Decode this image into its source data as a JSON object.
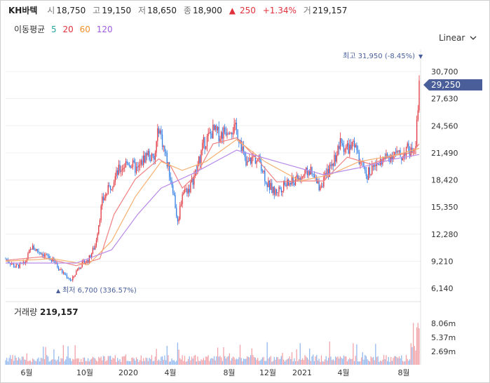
{
  "header": {
    "name": "KH바텍",
    "open_label": "시",
    "open": "18,750",
    "high_label": "고",
    "high": "19,150",
    "low_label": "저",
    "low": "18,650",
    "close_label": "종",
    "close": "18,900",
    "change": "250",
    "change_pct": "+1.34%",
    "volume_label": "거",
    "volume": "219,157"
  },
  "moving_average": {
    "label": "이동평균",
    "periods": [
      {
        "value": "5",
        "color": "#26a69a"
      },
      {
        "value": "20",
        "color": "#e0323c"
      },
      {
        "value": "60",
        "color": "#f5902b"
      },
      {
        "value": "120",
        "color": "#a05ae0"
      }
    ]
  },
  "scale_selector": {
    "label": "Linear"
  },
  "volume_panel": {
    "label": "거래량",
    "value": "219,157"
  },
  "colors": {
    "up": "#e0323c",
    "down": "#2c7be5",
    "last_price_bg": "#4a5f9a"
  },
  "chart_data": {
    "type": "candlestick-with-volume",
    "price_axis": {
      "ticks": [
        "30,700",
        "27,630",
        "24,560",
        "21,490",
        "18,420",
        "15,350",
        "12,280",
        "9,210",
        "6,140"
      ],
      "tick_values": [
        30700,
        27630,
        24560,
        21490,
        18420,
        15350,
        12280,
        9210,
        6140
      ]
    },
    "x_axis": {
      "ticks": [
        "6월",
        "10월",
        "2020",
        "4월",
        "8월",
        "12월",
        "2021",
        "4월",
        "8월"
      ]
    },
    "volume_axis": {
      "ticks": [
        "8.06m",
        "5.37m",
        "2.69m"
      ]
    },
    "last_price": "29,250",
    "high_marker": {
      "label": "최고",
      "value": "31,950",
      "pct": "(-8.45%)"
    },
    "low_marker": {
      "label": "최저",
      "value": "6,700",
      "pct": "(336.57%)"
    },
    "price_path": [
      [
        0,
        9500
      ],
      [
        8,
        8600
      ],
      [
        16,
        8900
      ],
      [
        22,
        10800
      ],
      [
        30,
        10200
      ],
      [
        40,
        9300
      ],
      [
        48,
        8000
      ],
      [
        56,
        7000
      ],
      [
        62,
        8600
      ],
      [
        70,
        9300
      ],
      [
        76,
        11000
      ],
      [
        82,
        16000
      ],
      [
        88,
        17500
      ],
      [
        96,
        19500
      ],
      [
        104,
        20500
      ],
      [
        112,
        19500
      ],
      [
        120,
        21500
      ],
      [
        126,
        20500
      ],
      [
        130,
        24500
      ],
      [
        136,
        21000
      ],
      [
        142,
        17500
      ],
      [
        146,
        13500
      ],
      [
        150,
        17000
      ],
      [
        156,
        17500
      ],
      [
        162,
        19500
      ],
      [
        168,
        22500
      ],
      [
        176,
        24000
      ],
      [
        182,
        23500
      ],
      [
        190,
        24500
      ],
      [
        196,
        24000
      ],
      [
        200,
        22500
      ],
      [
        204,
        20000
      ],
      [
        210,
        21000
      ],
      [
        216,
        20500
      ],
      [
        222,
        18000
      ],
      [
        228,
        17000
      ],
      [
        236,
        17800
      ],
      [
        244,
        18200
      ],
      [
        252,
        18800
      ],
      [
        258,
        19500
      ],
      [
        262,
        18500
      ],
      [
        266,
        17700
      ],
      [
        272,
        18800
      ],
      [
        278,
        20500
      ],
      [
        284,
        22500
      ],
      [
        290,
        22000
      ],
      [
        296,
        22200
      ],
      [
        302,
        20000
      ],
      [
        306,
        19000
      ],
      [
        310,
        19500
      ],
      [
        318,
        20500
      ],
      [
        324,
        21000
      ],
      [
        330,
        21500
      ],
      [
        336,
        21000
      ],
      [
        340,
        22000
      ],
      [
        344,
        21500
      ],
      [
        348,
        23000
      ],
      [
        351,
        29250
      ]
    ],
    "ma_paths": {
      "ma20": [
        [
          0,
          9300
        ],
        [
          30,
          9700
        ],
        [
          60,
          8700
        ],
        [
          80,
          9500
        ],
        [
          92,
          14500
        ],
        [
          110,
          18500
        ],
        [
          130,
          20800
        ],
        [
          140,
          20000
        ],
        [
          150,
          17500
        ],
        [
          162,
          19000
        ],
        [
          176,
          22500
        ],
        [
          196,
          23200
        ],
        [
          212,
          21000
        ],
        [
          230,
          18200
        ],
        [
          250,
          18300
        ],
        [
          270,
          18300
        ],
        [
          290,
          21000
        ],
        [
          310,
          20200
        ],
        [
          330,
          21200
        ],
        [
          345,
          21500
        ],
        [
          351,
          22500
        ]
      ],
      "ma60": [
        [
          0,
          9200
        ],
        [
          40,
          9500
        ],
        [
          70,
          8800
        ],
        [
          90,
          11500
        ],
        [
          110,
          16500
        ],
        [
          132,
          20500
        ],
        [
          150,
          19500
        ],
        [
          170,
          20500
        ],
        [
          196,
          23000
        ],
        [
          220,
          20500
        ],
        [
          250,
          18300
        ],
        [
          275,
          19000
        ],
        [
          300,
          20500
        ],
        [
          330,
          21200
        ],
        [
          351,
          22000
        ]
      ],
      "ma120": [
        [
          0,
          9000
        ],
        [
          60,
          9000
        ],
        [
          90,
          10500
        ],
        [
          112,
          14500
        ],
        [
          132,
          17500
        ],
        [
          160,
          19200
        ],
        [
          196,
          21800
        ],
        [
          230,
          20500
        ],
        [
          270,
          19000
        ],
        [
          300,
          19800
        ],
        [
          330,
          20800
        ],
        [
          351,
          21300
        ]
      ]
    }
  }
}
